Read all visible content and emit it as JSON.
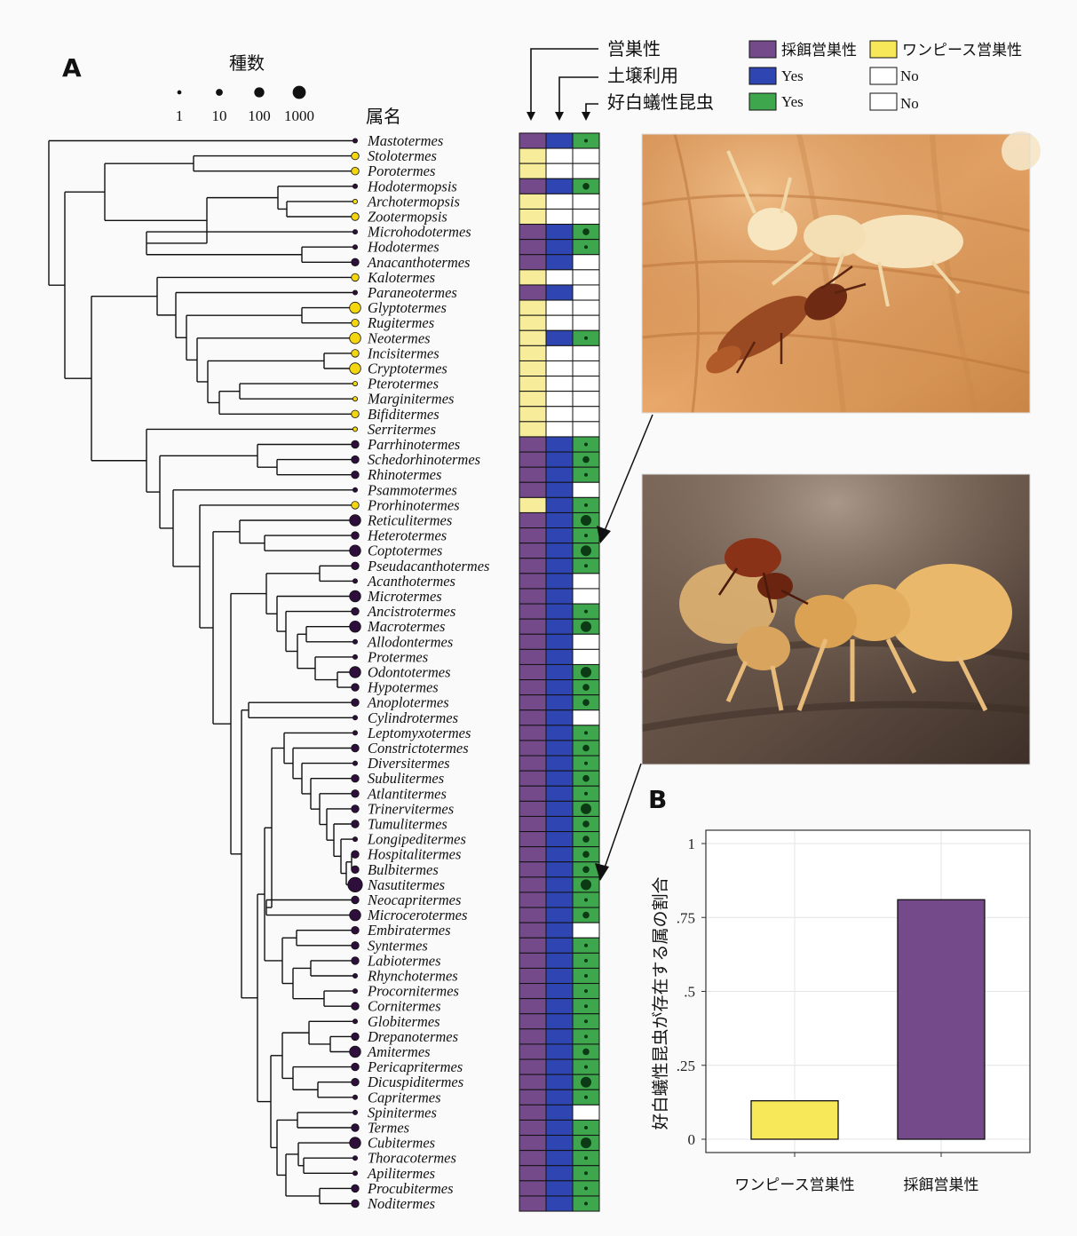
{
  "panel_a": {
    "label": "A",
    "species_count": {
      "title": "種数",
      "levels": [
        "1",
        "10",
        "100",
        "1000"
      ]
    },
    "genus_header": "属名",
    "column_headers": {
      "nesting": "営巣性",
      "soil": "土壌利用",
      "myrmecophile": "好白蟻性昆虫"
    },
    "legend": {
      "foraging": "採餌営巣性",
      "onepiece": "ワンピース営巣性",
      "soil_yes": "Yes",
      "soil_no": "No",
      "inq_yes": "Yes",
      "inq_no": "No"
    },
    "colors": {
      "foraging": "#744a8b",
      "onepiece": "#f7ec9a",
      "soil_yes": "#2f45b2",
      "inq_yes": "#3ea64c",
      "empty": "#ffffff"
    },
    "genera": [
      {
        "name": "Mastotermes",
        "nest": "F",
        "soil": 1,
        "inq": 1,
        "ic": 1,
        "size": 1
      },
      {
        "name": "Stolotermes",
        "nest": "O",
        "soil": 0,
        "inq": 0,
        "ic": 0,
        "size": 2
      },
      {
        "name": "Porotermes",
        "nest": "O",
        "soil": 0,
        "inq": 0,
        "ic": 0,
        "size": 2
      },
      {
        "name": "Hodotermopsis",
        "nest": "F",
        "soil": 1,
        "inq": 1,
        "ic": 2,
        "size": 1
      },
      {
        "name": "Archotermopsis",
        "nest": "O",
        "soil": 0,
        "inq": 0,
        "ic": 0,
        "size": 1
      },
      {
        "name": "Zootermopsis",
        "nest": "O",
        "soil": 0,
        "inq": 0,
        "ic": 0,
        "size": 2
      },
      {
        "name": "Microhodotermes",
        "nest": "F",
        "soil": 1,
        "inq": 1,
        "ic": 2,
        "size": 1
      },
      {
        "name": "Hodotermes",
        "nest": "F",
        "soil": 1,
        "inq": 1,
        "ic": 1,
        "size": 1
      },
      {
        "name": "Anacanthotermes",
        "nest": "F",
        "soil": 1,
        "inq": 0,
        "ic": 0,
        "size": 2
      },
      {
        "name": "Kalotermes",
        "nest": "O",
        "soil": 0,
        "inq": 0,
        "ic": 0,
        "size": 2
      },
      {
        "name": "Paraneotermes",
        "nest": "F",
        "soil": 1,
        "inq": 0,
        "ic": 0,
        "size": 1
      },
      {
        "name": "Glyptotermes",
        "nest": "O",
        "soil": 0,
        "inq": 0,
        "ic": 0,
        "size": 3
      },
      {
        "name": "Rugitermes",
        "nest": "O",
        "soil": 0,
        "inq": 0,
        "ic": 0,
        "size": 2
      },
      {
        "name": "Neotermes",
        "nest": "O",
        "soil": 1,
        "inq": 1,
        "ic": 1,
        "size": 3
      },
      {
        "name": "Incisitermes",
        "nest": "O",
        "soil": 0,
        "inq": 0,
        "ic": 0,
        "size": 2
      },
      {
        "name": "Cryptotermes",
        "nest": "O",
        "soil": 0,
        "inq": 0,
        "ic": 0,
        "size": 3
      },
      {
        "name": "Pterotermes",
        "nest": "O",
        "soil": 0,
        "inq": 0,
        "ic": 0,
        "size": 1
      },
      {
        "name": "Marginitermes",
        "nest": "O",
        "soil": 0,
        "inq": 0,
        "ic": 0,
        "size": 1
      },
      {
        "name": "Bifiditermes",
        "nest": "O",
        "soil": 0,
        "inq": 0,
        "ic": 0,
        "size": 2
      },
      {
        "name": "Serritermes",
        "nest": "O",
        "soil": 0,
        "inq": 0,
        "ic": 0,
        "size": 1
      },
      {
        "name": "Parrhinotermes",
        "nest": "F",
        "soil": 1,
        "inq": 1,
        "ic": 1,
        "size": 2
      },
      {
        "name": "Schedorhinotermes",
        "nest": "F",
        "soil": 1,
        "inq": 1,
        "ic": 2,
        "size": 2
      },
      {
        "name": "Rhinotermes",
        "nest": "F",
        "soil": 1,
        "inq": 1,
        "ic": 1,
        "size": 2
      },
      {
        "name": "Psammotermes",
        "nest": "F",
        "soil": 1,
        "inq": 0,
        "ic": 0,
        "size": 1
      },
      {
        "name": "Prorhinotermes",
        "nest": "O",
        "soil": 1,
        "inq": 1,
        "ic": 1,
        "size": 2
      },
      {
        "name": "Reticulitermes",
        "nest": "F",
        "soil": 1,
        "inq": 1,
        "ic": 3,
        "size": 3
      },
      {
        "name": "Heterotermes",
        "nest": "F",
        "soil": 1,
        "inq": 1,
        "ic": 1,
        "size": 2
      },
      {
        "name": "Coptotermes",
        "nest": "F",
        "soil": 1,
        "inq": 1,
        "ic": 3,
        "size": 3
      },
      {
        "name": "Pseudacanthotermes",
        "nest": "F",
        "soil": 1,
        "inq": 1,
        "ic": 1,
        "size": 2
      },
      {
        "name": "Acanthotermes",
        "nest": "F",
        "soil": 1,
        "inq": 0,
        "ic": 0,
        "size": 1
      },
      {
        "name": "Microtermes",
        "nest": "F",
        "soil": 1,
        "inq": 0,
        "ic": 0,
        "size": 3
      },
      {
        "name": "Ancistrotermes",
        "nest": "F",
        "soil": 1,
        "inq": 1,
        "ic": 1,
        "size": 2
      },
      {
        "name": "Macrotermes",
        "nest": "F",
        "soil": 1,
        "inq": 1,
        "ic": 3,
        "size": 3
      },
      {
        "name": "Allodontermes",
        "nest": "F",
        "soil": 1,
        "inq": 0,
        "ic": 0,
        "size": 1
      },
      {
        "name": "Protermes",
        "nest": "F",
        "soil": 1,
        "inq": 0,
        "ic": 0,
        "size": 1
      },
      {
        "name": "Odontotermes",
        "nest": "F",
        "soil": 1,
        "inq": 1,
        "ic": 3,
        "size": 3
      },
      {
        "name": "Hypotermes",
        "nest": "F",
        "soil": 1,
        "inq": 1,
        "ic": 2,
        "size": 2
      },
      {
        "name": "Anoplotermes",
        "nest": "F",
        "soil": 1,
        "inq": 1,
        "ic": 2,
        "size": 2
      },
      {
        "name": "Cylindrotermes",
        "nest": "F",
        "soil": 1,
        "inq": 0,
        "ic": 0,
        "size": 1
      },
      {
        "name": "Leptomyxotermes",
        "nest": "F",
        "soil": 1,
        "inq": 1,
        "ic": 1,
        "size": 1
      },
      {
        "name": "Constrictotermes",
        "nest": "F",
        "soil": 1,
        "inq": 1,
        "ic": 2,
        "size": 2
      },
      {
        "name": "Diversitermes",
        "nest": "F",
        "soil": 1,
        "inq": 1,
        "ic": 1,
        "size": 1
      },
      {
        "name": "Subulitermes",
        "nest": "F",
        "soil": 1,
        "inq": 1,
        "ic": 2,
        "size": 2
      },
      {
        "name": "Atlantitermes",
        "nest": "F",
        "soil": 1,
        "inq": 1,
        "ic": 1,
        "size": 2
      },
      {
        "name": "Trinervitermes",
        "nest": "F",
        "soil": 1,
        "inq": 1,
        "ic": 3,
        "size": 2
      },
      {
        "name": "Tumulitermes",
        "nest": "F",
        "soil": 1,
        "inq": 1,
        "ic": 2,
        "size": 2
      },
      {
        "name": "Longipeditermes",
        "nest": "F",
        "soil": 1,
        "inq": 1,
        "ic": 2,
        "size": 1
      },
      {
        "name": "Hospitalitermes",
        "nest": "F",
        "soil": 1,
        "inq": 1,
        "ic": 2,
        "size": 2
      },
      {
        "name": "Bulbitermes",
        "nest": "F",
        "soil": 1,
        "inq": 1,
        "ic": 2,
        "size": 2
      },
      {
        "name": "Nasutitermes",
        "nest": "F",
        "soil": 1,
        "inq": 1,
        "ic": 3,
        "size": 4
      },
      {
        "name": "Neocapritermes",
        "nest": "F",
        "soil": 1,
        "inq": 1,
        "ic": 1,
        "size": 2
      },
      {
        "name": "Microcerotermes",
        "nest": "F",
        "soil": 1,
        "inq": 1,
        "ic": 2,
        "size": 3
      },
      {
        "name": "Embiratermes",
        "nest": "F",
        "soil": 1,
        "inq": 0,
        "ic": 0,
        "size": 2
      },
      {
        "name": "Syntermes",
        "nest": "F",
        "soil": 1,
        "inq": 1,
        "ic": 1,
        "size": 2
      },
      {
        "name": "Labiotermes",
        "nest": "F",
        "soil": 1,
        "inq": 1,
        "ic": 1,
        "size": 2
      },
      {
        "name": "Rhynchotermes",
        "nest": "F",
        "soil": 1,
        "inq": 1,
        "ic": 1,
        "size": 1
      },
      {
        "name": "Procornitermes",
        "nest": "F",
        "soil": 1,
        "inq": 1,
        "ic": 1,
        "size": 1
      },
      {
        "name": "Cornitermes",
        "nest": "F",
        "soil": 1,
        "inq": 1,
        "ic": 1,
        "size": 2
      },
      {
        "name": "Globitermes",
        "nest": "F",
        "soil": 1,
        "inq": 1,
        "ic": 1,
        "size": 1
      },
      {
        "name": "Drepanotermes",
        "nest": "F",
        "soil": 1,
        "inq": 1,
        "ic": 1,
        "size": 2
      },
      {
        "name": "Amitermes",
        "nest": "F",
        "soil": 1,
        "inq": 1,
        "ic": 2,
        "size": 3
      },
      {
        "name": "Pericapritermes",
        "nest": "F",
        "soil": 1,
        "inq": 1,
        "ic": 1,
        "size": 2
      },
      {
        "name": "Dicuspiditermes",
        "nest": "F",
        "soil": 1,
        "inq": 1,
        "ic": 3,
        "size": 2
      },
      {
        "name": "Capritermes",
        "nest": "F",
        "soil": 1,
        "inq": 1,
        "ic": 1,
        "size": 1
      },
      {
        "name": "Spinitermes",
        "nest": "F",
        "soil": 1,
        "inq": 0,
        "ic": 0,
        "size": 1
      },
      {
        "name": "Termes",
        "nest": "F",
        "soil": 1,
        "inq": 1,
        "ic": 1,
        "size": 2
      },
      {
        "name": "Cubitermes",
        "nest": "F",
        "soil": 1,
        "inq": 1,
        "ic": 3,
        "size": 3
      },
      {
        "name": "Thoracotermes",
        "nest": "F",
        "soil": 1,
        "inq": 1,
        "ic": 1,
        "size": 1
      },
      {
        "name": "Apilitermes",
        "nest": "F",
        "soil": 1,
        "inq": 1,
        "ic": 1,
        "size": 1
      },
      {
        "name": "Procubitermes",
        "nest": "F",
        "soil": 1,
        "inq": 1,
        "ic": 1,
        "size": 2
      },
      {
        "name": "Noditermes",
        "nest": "F",
        "soil": 1,
        "inq": 1,
        "ic": 1,
        "size": 2
      }
    ]
  },
  "panel_b": {
    "label": "B",
    "ylabel": "好白蟻性昆虫が存在する属の割合",
    "chart_data": {
      "type": "bar",
      "categories": [
        "ワンピース営巣性",
        "採餌営巣性"
      ],
      "values": [
        0.13,
        0.81
      ],
      "colors": [
        "#f7e85a",
        "#744a8b"
      ],
      "ylim": [
        0,
        1
      ],
      "yticks": [
        "0",
        ".25",
        ".5",
        ".75",
        "1"
      ],
      "grid": true
    }
  }
}
